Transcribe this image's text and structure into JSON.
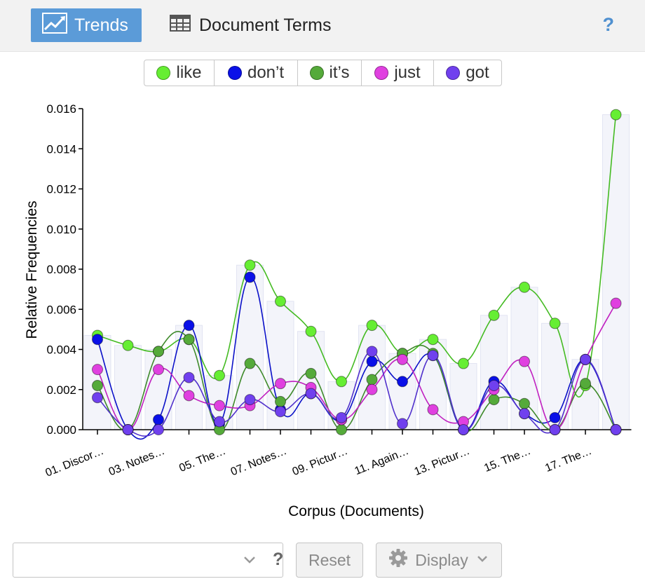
{
  "toolbar": {
    "tab_trends": "Trends",
    "tab_document_terms": "Document Terms",
    "help": "?"
  },
  "legend": [
    {
      "label": "like",
      "color": "#66ee33"
    },
    {
      "label": "don’t",
      "color": "#0a10e8"
    },
    {
      "label": "it’s",
      "color": "#55aa3a"
    },
    {
      "label": "just",
      "color": "#e040e0"
    },
    {
      "label": "got",
      "color": "#7040ee"
    }
  ],
  "chart_data": {
    "type": "line",
    "xlabel": "Corpus (Documents)",
    "ylabel": "Relative Frequencies",
    "ylim": [
      0,
      0.016
    ],
    "yticks": [
      "0.000",
      "0.002",
      "0.004",
      "0.006",
      "0.008",
      "0.010",
      "0.012",
      "0.014",
      "0.016"
    ],
    "ytick_values": [
      0,
      0.002,
      0.004,
      0.006,
      0.008,
      0.01,
      0.012,
      0.014,
      0.016
    ],
    "xtick_labels": [
      "01. Discor…",
      "03. Notes…",
      "05. The…",
      "07. Notes…",
      "09. Pictur…",
      "11. Again…",
      "13. Pictur…",
      "15. The…",
      "17. The…"
    ],
    "num_documents": 18,
    "bars": [
      0.0047,
      0.0042,
      0.004,
      0.0052,
      0.0027,
      0.0082,
      0.0064,
      0.0049,
      0.0024,
      0.0052,
      0.0038,
      0.0045,
      0.0033,
      0.0057,
      0.0071,
      0.0053,
      0.0035,
      0.0157
    ],
    "series": [
      {
        "name": "like",
        "color": "#66ee33",
        "stroke": "#44bb22",
        "values": [
          0.0047,
          0.0042,
          0.0039,
          0.0045,
          0.0027,
          0.0082,
          0.0064,
          0.0049,
          0.0024,
          0.0052,
          0.0038,
          0.0045,
          0.0033,
          0.0057,
          0.0071,
          0.0053,
          0.0022,
          0.0157
        ]
      },
      {
        "name": "don’t",
        "color": "#0a10e8",
        "stroke": "#0a10c8",
        "values": [
          0.0045,
          0.0,
          0.0005,
          0.0052,
          0.0003,
          0.0076,
          0.001,
          0.0018,
          0.0005,
          0.0034,
          0.0024,
          0.0037,
          0.0,
          0.0024,
          0.0008,
          0.0006,
          0.0035,
          0.0
        ]
      },
      {
        "name": "it’s",
        "color": "#55aa3a",
        "stroke": "#3e8a2a",
        "values": [
          0.0022,
          0.0,
          0.0039,
          0.0045,
          0.0,
          0.0033,
          0.0014,
          0.0028,
          0.0,
          0.0025,
          0.0038,
          0.0038,
          0.0,
          0.0015,
          0.0013,
          0.0,
          0.0023,
          0.0
        ]
      },
      {
        "name": "just",
        "color": "#e040e0",
        "stroke": "#c020c0",
        "values": [
          0.003,
          0.0,
          0.003,
          0.0017,
          0.0012,
          0.0012,
          0.0023,
          0.0021,
          0.0005,
          0.002,
          0.0035,
          0.001,
          0.0004,
          0.002,
          0.0034,
          0.0,
          0.0035,
          0.0063
        ]
      },
      {
        "name": "got",
        "color": "#7040ee",
        "stroke": "#5030cc",
        "values": [
          0.0016,
          0.0,
          0.0,
          0.0026,
          0.0004,
          0.0015,
          0.0009,
          0.0018,
          0.0006,
          0.0039,
          0.0003,
          0.0037,
          0.0,
          0.0022,
          0.0008,
          0.0,
          0.0035,
          0.0
        ]
      }
    ]
  },
  "controls": {
    "search_value": "",
    "help": "?",
    "reset_label": "Reset",
    "display_label": "Display"
  }
}
